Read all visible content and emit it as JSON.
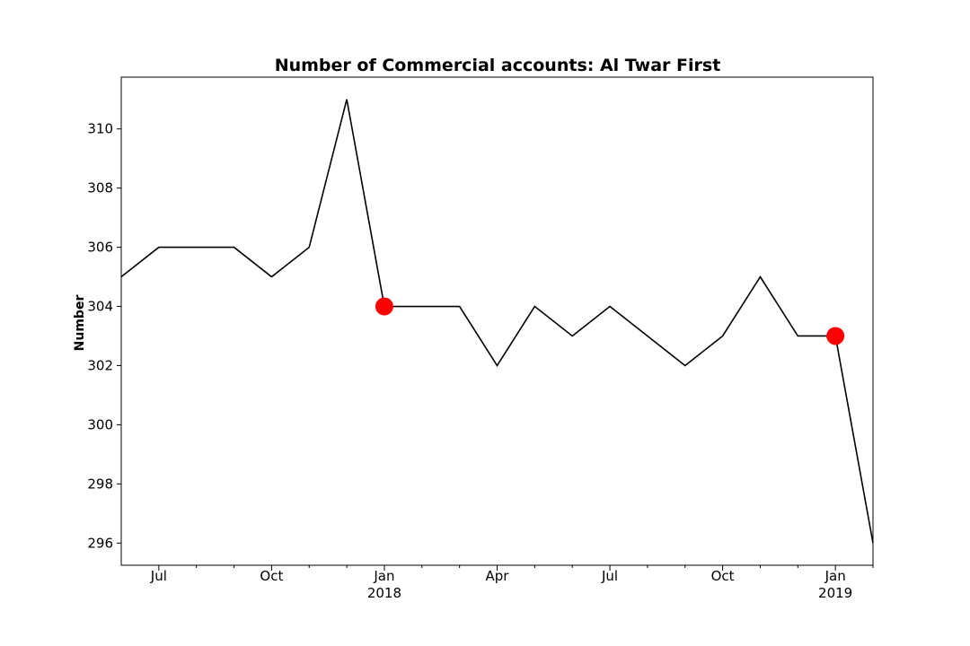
{
  "chart_data": {
    "type": "line",
    "title": "Number of Commercial accounts: Al Twar First",
    "xlabel": "",
    "ylabel": "Number",
    "x": [
      "2017-06",
      "2017-07",
      "2017-08",
      "2017-09",
      "2017-10",
      "2017-11",
      "2017-12",
      "2018-01",
      "2018-02",
      "2018-03",
      "2018-04",
      "2018-05",
      "2018-06",
      "2018-07",
      "2018-08",
      "2018-09",
      "2018-10",
      "2018-11",
      "2018-12",
      "2019-01",
      "2019-02"
    ],
    "series": [
      {
        "values": [
          305,
          306,
          306,
          306,
          305,
          306,
          311,
          304,
          304,
          304,
          302,
          304,
          303,
          304,
          303,
          302,
          303,
          305,
          303,
          303,
          296
        ],
        "color": "#000000"
      }
    ],
    "highlighted_points": [
      {
        "x": "2018-01",
        "y": 304,
        "color": "#ff0000"
      },
      {
        "x": "2019-01",
        "y": 303,
        "color": "#ff0000"
      }
    ],
    "xlim": [
      "2017-06",
      "2019-02"
    ],
    "ylim": [
      295.25,
      311.75
    ],
    "y_ticks": [
      296,
      298,
      300,
      302,
      304,
      306,
      308,
      310
    ],
    "x_major_ticks": [
      {
        "x": "2017-07",
        "label": "Jul",
        "sublabel": ""
      },
      {
        "x": "2017-10",
        "label": "Oct",
        "sublabel": ""
      },
      {
        "x": "2018-01",
        "label": "Jan",
        "sublabel": "2018"
      },
      {
        "x": "2018-04",
        "label": "Apr",
        "sublabel": ""
      },
      {
        "x": "2018-07",
        "label": "Jul",
        "sublabel": ""
      },
      {
        "x": "2018-10",
        "label": "Oct",
        "sublabel": ""
      },
      {
        "x": "2019-01",
        "label": "Jan",
        "sublabel": "2019"
      }
    ],
    "x_minor_ticks": [
      "2017-08",
      "2017-09",
      "2017-11",
      "2017-12",
      "2018-02",
      "2018-03",
      "2018-05",
      "2018-06",
      "2018-08",
      "2018-09",
      "2018-11",
      "2018-12",
      "2019-02"
    ],
    "grid": false,
    "legend": "none"
  }
}
